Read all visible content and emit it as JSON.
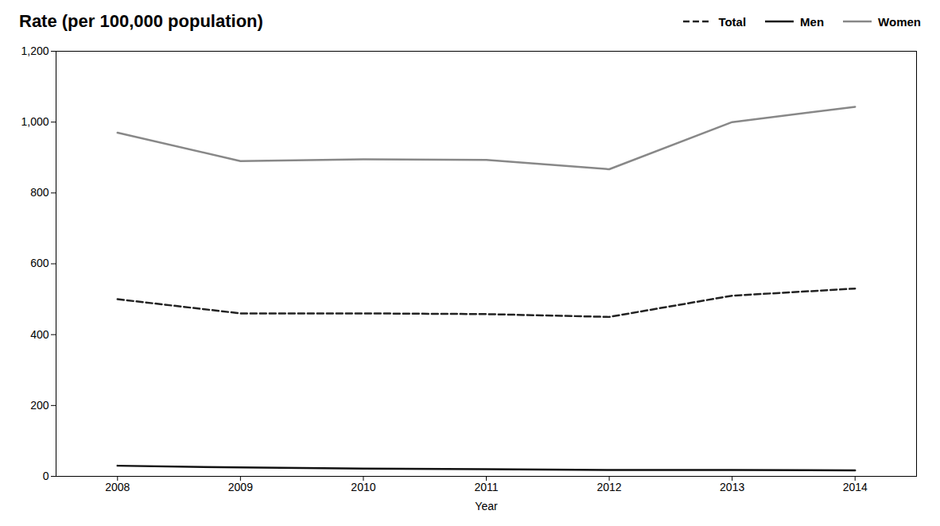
{
  "chart_data": {
    "type": "line",
    "title": "Rate (per 100,000 population)",
    "x_label": "Year",
    "x": [
      2008,
      2009,
      2010,
      2011,
      2012,
      2013,
      2014
    ],
    "series": [
      {
        "name": "Total",
        "color": "#222222",
        "line_style": "dashed",
        "values": [
          500,
          460,
          460,
          458,
          450,
          510,
          530
        ]
      },
      {
        "name": "Men",
        "color": "#111111",
        "line_style": "solid",
        "values": [
          30,
          25,
          22,
          20,
          18,
          18,
          17
        ]
      },
      {
        "name": "Women",
        "color": "#888888",
        "line_style": "solid",
        "values": [
          970,
          890,
          895,
          893,
          867,
          1000,
          1043
        ]
      }
    ],
    "xlim": [
      2007.5,
      2014.5
    ],
    "xticks": [
      2008,
      2009,
      2010,
      2011,
      2012,
      2013,
      2014
    ],
    "ylim": [
      0,
      1200
    ],
    "yticks": [
      0,
      200,
      400,
      600,
      800,
      {
        "value": 1000,
        "label": "1,000"
      },
      {
        "value": 1200,
        "label": "1,200"
      }
    ],
    "grid": false,
    "legend": "upper right"
  }
}
